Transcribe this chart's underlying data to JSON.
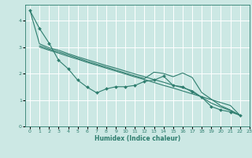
{
  "xlabel": "Humidex (Indice chaleur)",
  "background_color": "#cce8e4",
  "grid_color": "#ffffff",
  "line_color": "#2e7d6e",
  "xlim": [
    -0.5,
    23
  ],
  "ylim": [
    0,
    4.6
  ],
  "xticks": [
    0,
    1,
    2,
    3,
    4,
    5,
    6,
    7,
    8,
    9,
    10,
    11,
    12,
    13,
    14,
    15,
    16,
    17,
    18,
    19,
    20,
    21,
    22,
    23
  ],
  "yticks": [
    0,
    1,
    2,
    3,
    4
  ],
  "series": [
    {
      "x": [
        0,
        1,
        2,
        3,
        4,
        5,
        6,
        7,
        8,
        9,
        10,
        11,
        12,
        13,
        14,
        15,
        16,
        17,
        18,
        19,
        20,
        21,
        22
      ],
      "y": [
        4.38,
        3.7,
        3.15,
        2.5,
        2.18,
        1.75,
        1.48,
        1.27,
        1.42,
        1.5,
        1.5,
        1.55,
        1.7,
        1.75,
        1.9,
        1.55,
        1.5,
        1.3,
        1.1,
        0.75,
        0.62,
        0.55,
        0.42
      ],
      "markers": true
    },
    {
      "x": [
        0,
        1,
        2,
        3,
        4,
        5,
        6,
        7,
        8,
        9,
        10,
        11,
        12,
        13,
        14,
        15,
        16,
        17,
        18,
        19,
        20,
        21,
        22
      ],
      "y": [
        4.38,
        3.12,
        2.97,
        2.88,
        2.75,
        2.63,
        2.52,
        2.41,
        2.3,
        2.2,
        2.09,
        1.98,
        1.88,
        1.77,
        1.67,
        1.56,
        1.46,
        1.35,
        1.1,
        0.88,
        0.73,
        0.6,
        0.42
      ],
      "markers": false
    },
    {
      "x": [
        1,
        2,
        3,
        4,
        5,
        6,
        7,
        8,
        9,
        10,
        11,
        12,
        13,
        14,
        15,
        16,
        17,
        18,
        19,
        20,
        21,
        22
      ],
      "y": [
        3.05,
        2.92,
        2.82,
        2.7,
        2.58,
        2.46,
        2.35,
        2.24,
        2.13,
        2.02,
        1.91,
        1.81,
        2.05,
        2.0,
        1.88,
        2.02,
        1.85,
        1.28,
        1.03,
        0.78,
        0.62,
        0.42
      ],
      "markers": false
    },
    {
      "x": [
        1,
        2,
        3,
        4,
        5,
        6,
        7,
        8,
        9,
        10,
        11,
        12,
        13,
        14,
        15,
        16,
        17,
        18,
        19,
        20,
        21,
        22
      ],
      "y": [
        3.0,
        2.88,
        2.77,
        2.65,
        2.54,
        2.42,
        2.31,
        2.2,
        2.09,
        1.98,
        1.87,
        1.77,
        1.66,
        1.55,
        1.45,
        1.34,
        1.23,
        1.12,
        1.01,
        0.9,
        0.79,
        0.42
      ],
      "markers": false
    }
  ]
}
